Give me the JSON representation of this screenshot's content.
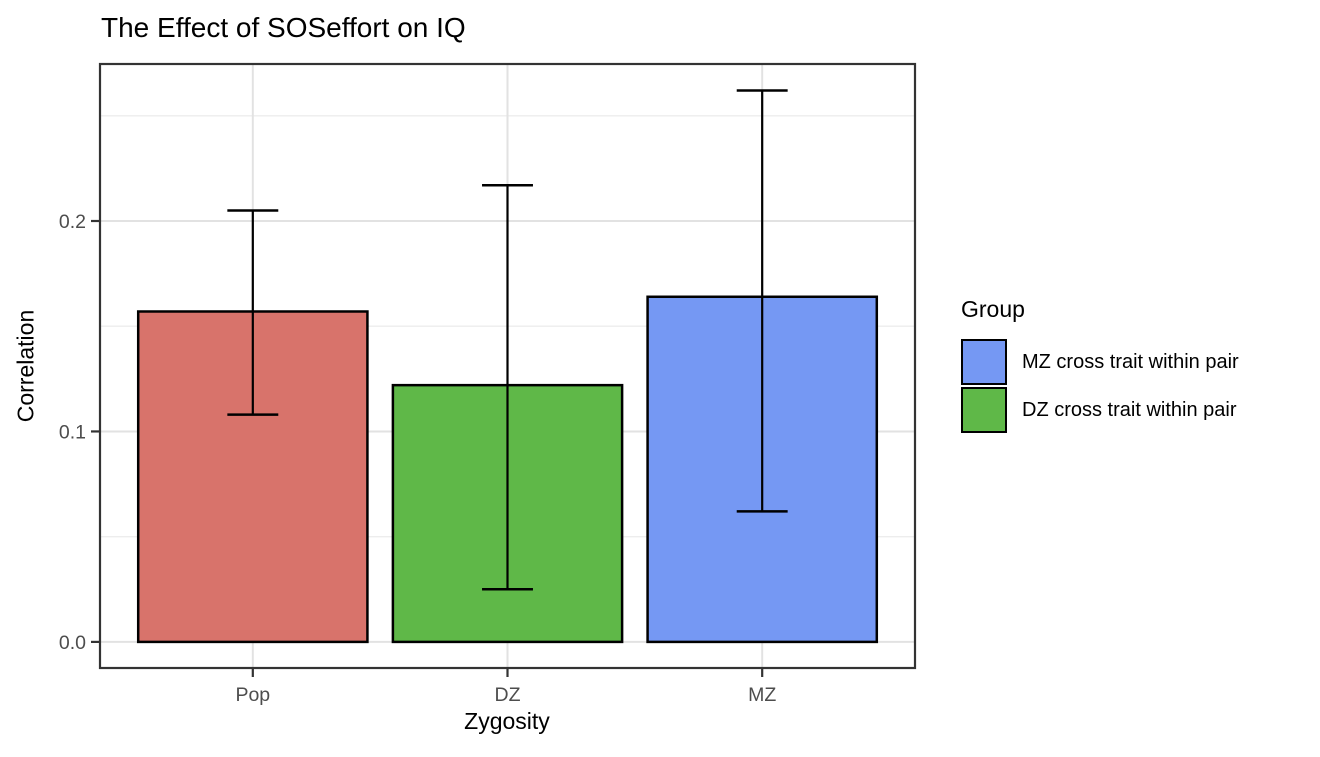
{
  "chart_data": {
    "type": "bar",
    "title": "The Effect of SOSeffort on IQ",
    "xlabel": "Zygosity",
    "ylabel": "Correlation",
    "categories": [
      "Pop",
      "DZ",
      "MZ"
    ],
    "values": [
      0.157,
      0.122,
      0.164
    ],
    "error_bars": [
      {
        "lower": 0.108,
        "upper": 0.205
      },
      {
        "lower": 0.025,
        "upper": 0.217
      },
      {
        "lower": 0.062,
        "upper": 0.262
      }
    ],
    "bar_colors": [
      "#D8736B",
      "#5FB848",
      "#7598F3"
    ],
    "bar_border_color": "#000000",
    "y_ticks": [
      {
        "label": "0.0",
        "value": 0.0
      },
      {
        "label": "0.1",
        "value": 0.1
      },
      {
        "label": "0.2",
        "value": 0.2
      }
    ],
    "y_minor_values": [
      0.05,
      0.15,
      0.25
    ],
    "ylim": [
      -0.0124,
      0.2746
    ],
    "grid": "major+minor, horizontal major+minor and vertical major at category centers",
    "legend_position": "right",
    "legend": {
      "title": "Group",
      "items": [
        {
          "label": "MZ cross trait within pair",
          "color": "#7598F3"
        },
        {
          "label": "DZ cross trait within pair",
          "color": "#5FB848"
        }
      ]
    },
    "colors": {
      "background": "#FFFFFF",
      "panel_border": "#333333",
      "grid_major": "#E2E2E2",
      "grid_minor": "#EDEDED",
      "tick_mark": "#333333",
      "tick_label": "#4D4D4D",
      "error_bar": "#000000"
    }
  }
}
